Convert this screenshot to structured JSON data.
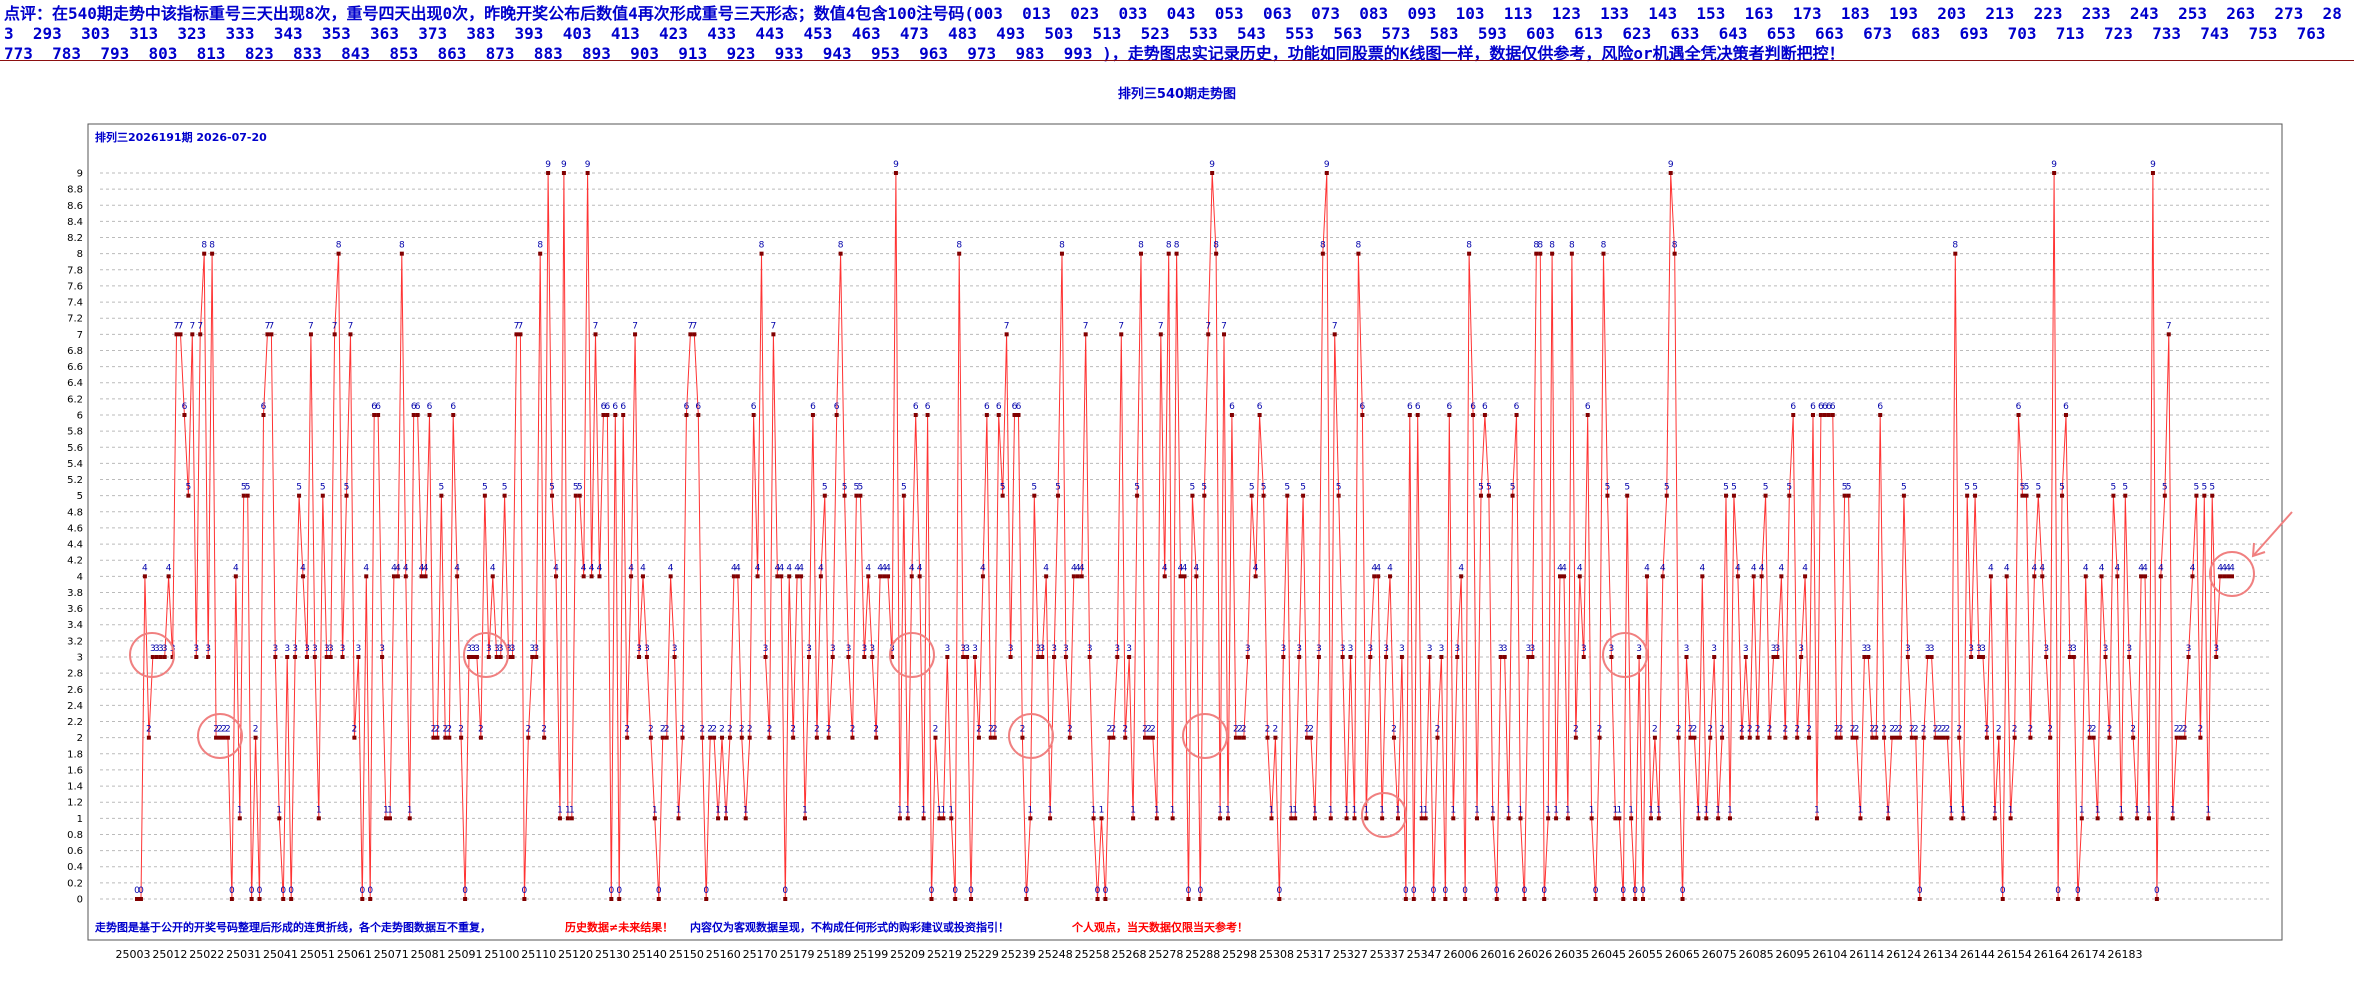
{
  "comment": {
    "text": "点评：在540期走势中该指标重号三天出现8次，重号四天出现0次，昨晚开奖公布后数值4再次形成重号三天形态；数值4包含100注号码(003  013  023  033  043  053  063  073  083  093  103  113  123  133  143  153  163  173  183  193  203  213  223  233  243  253  263  273  283  293  303  313  323  333  343  353  363  373  383  393  403  413  423  433  443  453  463  473  483  493  503  513  523  533  543  553  563  573  583  593  603  613  623  633  643  653  663  673  683  693  703  713  723  733  743  753  763  773  783  793  803  813  823  833  843  853  863  873  883  893  903  913  923  933  943  953  963  973  983  993 )，走势图忠实记录历史，功能如同股票的K线图一样，数据仅供参考，风险or机遇全凭决策者判断把控！"
  },
  "chart_data": {
    "type": "line",
    "title": "排列三540期走势图",
    "subtitle": "排列三2026191期  2026-07-20",
    "ylim": [
      0,
      9.2
    ],
    "yticks": [
      "0",
      "0.2",
      "0.4",
      "0.6",
      "0.8",
      "1",
      "1.2",
      "1.4",
      "1.6",
      "1.8",
      "2",
      "2.2",
      "2.4",
      "2.6",
      "2.8",
      "3",
      "3.2",
      "3.4",
      "3.6",
      "3.8",
      "4",
      "4.2",
      "4.4",
      "4.6",
      "4.8",
      "5",
      "5.2",
      "5.4",
      "5.6",
      "5.8",
      "6",
      "6.2",
      "6.4",
      "6.6",
      "6.8",
      "7",
      "7.2",
      "7.4",
      "7.6",
      "7.8",
      "8",
      "8.2",
      "8.4",
      "8.6",
      "8.8",
      "9"
    ],
    "xtick_labels": [
      "25003",
      "25012",
      "25022",
      "25031",
      "25041",
      "25051",
      "25061",
      "25071",
      "25081",
      "25091",
      "25100",
      "25110",
      "25120",
      "25130",
      "25140",
      "25150",
      "25160",
      "25170",
      "25179",
      "25189",
      "25199",
      "25209",
      "25219",
      "25229",
      "25239",
      "25248",
      "25258",
      "25268",
      "25278",
      "25288",
      "25298",
      "25308",
      "25317",
      "25327",
      "25337",
      "25347",
      "26006",
      "26016",
      "26026",
      "26035",
      "26045",
      "26055",
      "26065",
      "26075",
      "26085",
      "26095",
      "26104",
      "26114",
      "26124",
      "26134",
      "26144",
      "26154",
      "26164",
      "26174",
      "26183"
    ],
    "values": [
      0,
      0,
      4,
      2,
      3,
      3,
      3,
      3,
      4,
      3,
      7,
      7,
      6,
      5,
      7,
      3,
      7,
      8,
      3,
      8,
      2,
      2,
      2,
      2,
      0,
      4,
      1,
      5,
      5,
      0,
      2,
      0,
      6,
      7,
      7,
      3,
      1,
      0,
      3,
      0,
      3,
      5,
      4,
      3,
      7,
      3,
      1,
      5,
      3,
      3,
      7,
      8,
      3,
      5,
      7,
      2,
      3,
      0,
      4,
      0,
      6,
      6,
      3,
      1,
      1,
      4,
      4,
      8,
      4,
      1,
      6,
      6,
      4,
      4,
      6,
      2,
      2,
      5,
      2,
      2,
      6,
      4,
      2,
      0,
      3,
      3,
      3,
      2,
      5,
      3,
      4,
      3,
      3,
      5,
      3,
      3,
      7,
      7,
      0,
      2,
      3,
      3,
      8,
      2,
      9,
      5,
      4,
      1,
      9,
      1,
      1,
      5,
      5,
      4,
      9,
      4,
      7,
      4,
      6,
      6,
      0,
      6,
      0,
      6,
      2,
      4,
      7,
      3,
      4,
      3,
      2,
      1,
      0,
      2,
      2,
      4,
      3,
      1,
      2,
      6,
      7,
      7,
      6,
      2,
      0,
      2,
      2,
      1,
      2,
      1,
      2,
      4,
      4,
      2,
      1,
      2,
      6,
      4,
      8,
      3,
      2,
      7,
      4,
      4,
      0,
      4,
      2,
      4,
      4,
      1,
      3,
      6,
      2,
      4,
      5,
      2,
      3,
      6,
      8,
      5,
      3,
      2,
      5,
      5,
      3,
      4,
      3,
      2,
      4,
      4,
      4,
      3,
      9,
      1,
      5,
      1,
      4,
      6,
      4,
      1,
      6,
      0,
      2,
      1,
      1,
      3,
      1,
      0,
      8,
      3,
      3,
      0,
      3,
      2,
      4,
      6,
      2,
      2,
      6,
      5,
      7,
      3,
      6,
      6,
      2,
      0,
      1,
      5,
      3,
      3,
      4,
      1,
      3,
      5,
      8,
      3,
      2,
      4,
      4,
      4,
      7,
      3,
      1,
      0,
      1,
      0,
      2,
      2,
      3,
      7,
      2,
      3,
      1,
      5,
      8,
      2,
      2,
      2,
      1,
      7,
      4,
      8,
      1,
      8,
      4,
      4,
      0,
      5,
      4,
      0,
      5,
      7,
      9,
      8,
      1,
      7,
      1,
      6,
      2,
      2,
      2,
      3,
      5,
      4,
      6,
      5,
      2,
      1,
      2,
      0,
      3,
      5,
      1,
      1,
      3,
      5,
      2,
      2,
      1,
      3,
      8,
      9,
      1,
      7,
      5,
      3,
      1,
      3,
      1,
      8,
      6,
      1,
      3,
      4,
      4,
      1,
      3,
      4,
      2,
      1,
      3,
      0,
      6,
      0,
      6,
      1,
      1,
      3,
      0,
      2,
      3,
      0,
      6,
      1,
      3,
      4,
      0,
      8,
      6,
      1,
      5,
      6,
      5,
      1,
      0,
      3,
      3,
      1,
      5,
      6,
      1,
      0,
      3,
      3,
      8,
      8,
      0,
      1,
      8,
      1,
      4,
      4,
      1,
      8,
      2,
      4,
      3,
      6,
      1,
      0,
      2,
      8,
      5,
      3,
      1,
      1,
      0,
      5,
      1,
      0,
      3,
      0,
      4,
      1,
      2,
      1,
      4,
      5,
      9,
      8,
      2,
      0,
      3,
      2,
      2,
      1,
      4,
      1,
      2,
      3,
      1,
      2,
      5,
      1,
      5,
      4,
      2,
      3,
      2,
      4,
      2,
      4,
      5,
      2,
      3,
      3,
      4,
      2,
      5,
      6,
      2,
      3,
      4,
      2,
      6,
      1,
      6,
      6,
      6,
      6,
      2,
      2,
      5,
      5,
      2,
      2,
      1,
      3,
      3,
      2,
      2,
      6,
      2,
      1,
      2,
      2,
      2,
      5,
      3,
      2,
      2,
      0,
      2,
      3,
      3,
      2,
      2,
      2,
      2,
      1,
      8,
      2,
      1,
      5,
      3,
      5,
      3,
      3,
      2,
      4,
      1,
      2,
      0,
      4,
      1,
      2,
      6,
      5,
      5,
      2,
      4,
      5,
      4,
      3,
      2,
      9,
      0,
      5,
      6,
      3,
      3,
      0,
      1,
      4,
      2,
      2,
      1,
      4,
      3,
      2,
      5,
      4,
      1,
      5,
      3,
      2,
      1,
      4,
      4,
      1,
      9,
      0,
      4,
      5,
      7,
      1,
      2,
      2,
      2,
      3,
      4,
      5,
      2,
      5,
      1,
      5,
      3,
      4,
      4,
      4,
      4
    ]
  }
}
